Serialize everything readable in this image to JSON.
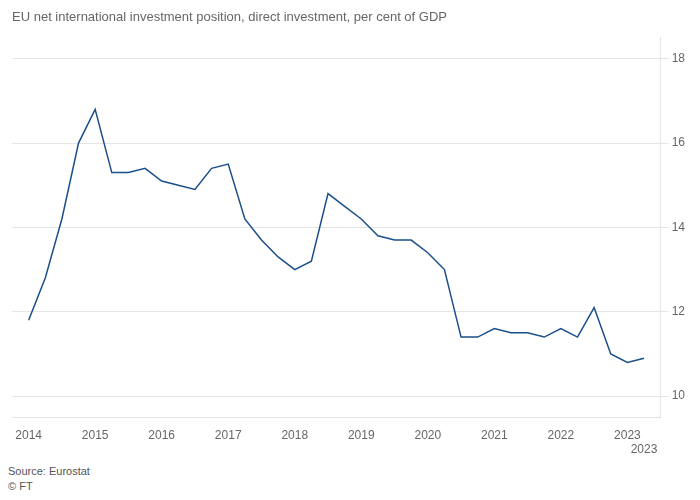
{
  "chart_data": {
    "type": "line",
    "title": "EU net international investment position, direct investment, per cent of GDP",
    "annotations": [
      "Source: Eurostat",
      "© FT"
    ],
    "color": "#1a4f8a",
    "x": [
      2014.0,
      2014.25,
      2014.5,
      2014.75,
      2015.0,
      2015.25,
      2015.5,
      2015.75,
      2016.0,
      2016.25,
      2016.5,
      2016.75,
      2017.0,
      2017.25,
      2017.5,
      2017.75,
      2018.0,
      2018.25,
      2018.5,
      2018.75,
      2019.0,
      2019.25,
      2019.5,
      2019.75,
      2020.0,
      2020.25,
      2020.5,
      2020.75,
      2021.0,
      2021.25,
      2021.5,
      2021.75,
      2022.0,
      2022.25,
      2022.5,
      2022.75,
      2023.0,
      2023.25
    ],
    "values": [
      11.8,
      12.8,
      14.2,
      16.0,
      16.8,
      15.3,
      15.3,
      15.4,
      15.1,
      15.0,
      14.9,
      15.4,
      15.5,
      14.2,
      13.7,
      13.3,
      13.0,
      13.2,
      14.8,
      14.5,
      14.2,
      13.8,
      13.7,
      13.7,
      13.4,
      13.0,
      11.4,
      11.4,
      11.6,
      11.5,
      11.5,
      11.4,
      11.6,
      11.4,
      12.1,
      11.0,
      10.8,
      10.9
    ],
    "xlim": [
      2013.75,
      2023.5
    ],
    "xticks": [
      2014,
      2015,
      2016,
      2017,
      2018,
      2019,
      2020,
      2021,
      2022,
      2023,
      {
        "value": 2023.25,
        "label": "2023"
      }
    ],
    "ylim": [
      9.5,
      18.5
    ],
    "yticks": [
      10,
      12,
      14,
      16,
      18
    ],
    "grid": true
  }
}
